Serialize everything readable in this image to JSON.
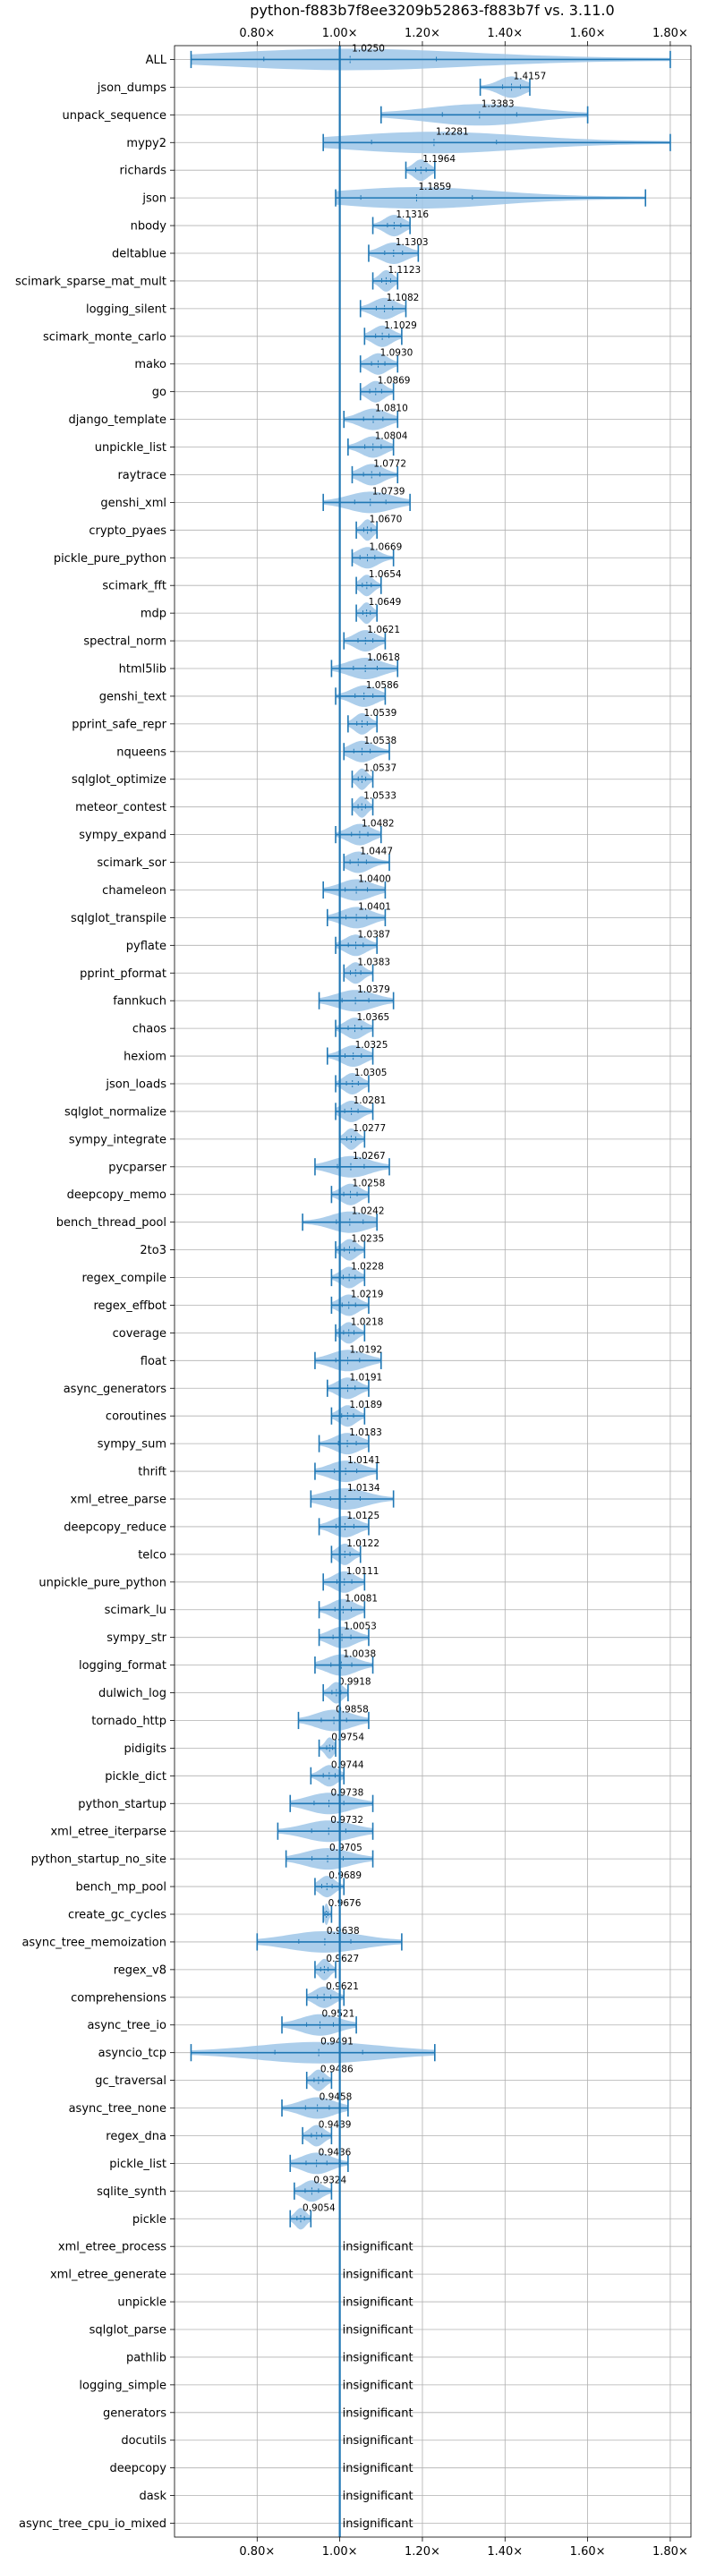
{
  "chart_data": {
    "type": "violin",
    "title": "python-f883b7f8ee3209b52863-f883b7f vs. 3.11.0",
    "xlim": [
      0.6,
      1.85
    ],
    "x_ticks": [
      0.8,
      1.0,
      1.2,
      1.4,
      1.6,
      1.8
    ],
    "x_tick_labels": [
      "0.80×",
      "1.00×",
      "1.20×",
      "1.40×",
      "1.60×",
      "1.80×"
    ],
    "reference_line": 1.0,
    "grid": true,
    "insignificant_label": "insignificant",
    "colors": {
      "line": "#1f77b4",
      "violin": "#9ec5e8"
    },
    "benchmarks": [
      {
        "name": "ALL",
        "value": 1.025,
        "label": "1.0250",
        "min": 0.64,
        "max": 1.8
      },
      {
        "name": "json_dumps",
        "value": 1.4157,
        "label": "1.4157",
        "min": 1.34,
        "max": 1.46
      },
      {
        "name": "unpack_sequence",
        "value": 1.3383,
        "label": "1.3383",
        "min": 1.1,
        "max": 1.6
      },
      {
        "name": "mypy2",
        "value": 1.2281,
        "label": "1.2281",
        "min": 0.96,
        "max": 1.8
      },
      {
        "name": "richards",
        "value": 1.1964,
        "label": "1.1964",
        "min": 1.16,
        "max": 1.23
      },
      {
        "name": "json",
        "value": 1.1859,
        "label": "1.1859",
        "min": 0.99,
        "max": 1.74
      },
      {
        "name": "nbody",
        "value": 1.1316,
        "label": "1.1316",
        "min": 1.08,
        "max": 1.17
      },
      {
        "name": "deltablue",
        "value": 1.1303,
        "label": "1.1303",
        "min": 1.07,
        "max": 1.19
      },
      {
        "name": "scimark_sparse_mat_mult",
        "value": 1.1123,
        "label": "1.1123",
        "min": 1.08,
        "max": 1.14
      },
      {
        "name": "logging_silent",
        "value": 1.1082,
        "label": "1.1082",
        "min": 1.05,
        "max": 1.16
      },
      {
        "name": "scimark_monte_carlo",
        "value": 1.1029,
        "label": "1.1029",
        "min": 1.06,
        "max": 1.15
      },
      {
        "name": "mako",
        "value": 1.093,
        "label": "1.0930",
        "min": 1.05,
        "max": 1.14
      },
      {
        "name": "go",
        "value": 1.0869,
        "label": "1.0869",
        "min": 1.05,
        "max": 1.13
      },
      {
        "name": "django_template",
        "value": 1.081,
        "label": "1.0810",
        "min": 1.01,
        "max": 1.14
      },
      {
        "name": "unpickle_list",
        "value": 1.0804,
        "label": "1.0804",
        "min": 1.02,
        "max": 1.13
      },
      {
        "name": "raytrace",
        "value": 1.0772,
        "label": "1.0772",
        "min": 1.03,
        "max": 1.14
      },
      {
        "name": "genshi_xml",
        "value": 1.0739,
        "label": "1.0739",
        "min": 0.96,
        "max": 1.17
      },
      {
        "name": "crypto_pyaes",
        "value": 1.067,
        "label": "1.0670",
        "min": 1.04,
        "max": 1.09
      },
      {
        "name": "pickle_pure_python",
        "value": 1.0669,
        "label": "1.0669",
        "min": 1.03,
        "max": 1.13
      },
      {
        "name": "scimark_fft",
        "value": 1.0654,
        "label": "1.0654",
        "min": 1.04,
        "max": 1.1
      },
      {
        "name": "mdp",
        "value": 1.0649,
        "label": "1.0649",
        "min": 1.04,
        "max": 1.09
      },
      {
        "name": "spectral_norm",
        "value": 1.0621,
        "label": "1.0621",
        "min": 1.01,
        "max": 1.11
      },
      {
        "name": "html5lib",
        "value": 1.0618,
        "label": "1.0618",
        "min": 0.98,
        "max": 1.14
      },
      {
        "name": "genshi_text",
        "value": 1.0586,
        "label": "1.0586",
        "min": 0.99,
        "max": 1.11
      },
      {
        "name": "pprint_safe_repr",
        "value": 1.0539,
        "label": "1.0539",
        "min": 1.02,
        "max": 1.09
      },
      {
        "name": "nqueens",
        "value": 1.0538,
        "label": "1.0538",
        "min": 1.01,
        "max": 1.12
      },
      {
        "name": "sqlglot_optimize",
        "value": 1.0537,
        "label": "1.0537",
        "min": 1.03,
        "max": 1.08
      },
      {
        "name": "meteor_contest",
        "value": 1.0533,
        "label": "1.0533",
        "min": 1.03,
        "max": 1.08
      },
      {
        "name": "sympy_expand",
        "value": 1.0482,
        "label": "1.0482",
        "min": 0.99,
        "max": 1.1
      },
      {
        "name": "scimark_sor",
        "value": 1.0447,
        "label": "1.0447",
        "min": 1.01,
        "max": 1.12
      },
      {
        "name": "chameleon",
        "value": 1.04,
        "label": "1.0400",
        "min": 0.96,
        "max": 1.11
      },
      {
        "name": "sqlglot_transpile",
        "value": 1.0401,
        "label": "1.0401",
        "min": 0.97,
        "max": 1.11
      },
      {
        "name": "pyflate",
        "value": 1.0387,
        "label": "1.0387",
        "min": 0.99,
        "max": 1.09
      },
      {
        "name": "pprint_pformat",
        "value": 1.0383,
        "label": "1.0383",
        "min": 1.01,
        "max": 1.08
      },
      {
        "name": "fannkuch",
        "value": 1.0379,
        "label": "1.0379",
        "min": 0.95,
        "max": 1.13
      },
      {
        "name": "chaos",
        "value": 1.0365,
        "label": "1.0365",
        "min": 0.99,
        "max": 1.08
      },
      {
        "name": "hexiom",
        "value": 1.0325,
        "label": "1.0325",
        "min": 0.97,
        "max": 1.08
      },
      {
        "name": "json_loads",
        "value": 1.0305,
        "label": "1.0305",
        "min": 0.99,
        "max": 1.07
      },
      {
        "name": "sqlglot_normalize",
        "value": 1.0281,
        "label": "1.0281",
        "min": 0.99,
        "max": 1.08
      },
      {
        "name": "sympy_integrate",
        "value": 1.0277,
        "label": "1.0277",
        "min": 1.0,
        "max": 1.06
      },
      {
        "name": "pycparser",
        "value": 1.0267,
        "label": "1.0267",
        "min": 0.94,
        "max": 1.12
      },
      {
        "name": "deepcopy_memo",
        "value": 1.0258,
        "label": "1.0258",
        "min": 0.98,
        "max": 1.07
      },
      {
        "name": "bench_thread_pool",
        "value": 1.0242,
        "label": "1.0242",
        "min": 0.91,
        "max": 1.09
      },
      {
        "name": "2to3",
        "value": 1.0235,
        "label": "1.0235",
        "min": 0.99,
        "max": 1.06
      },
      {
        "name": "regex_compile",
        "value": 1.0228,
        "label": "1.0228",
        "min": 0.98,
        "max": 1.06
      },
      {
        "name": "regex_effbot",
        "value": 1.0219,
        "label": "1.0219",
        "min": 0.98,
        "max": 1.07
      },
      {
        "name": "coverage",
        "value": 1.0218,
        "label": "1.0218",
        "min": 0.99,
        "max": 1.06
      },
      {
        "name": "float",
        "value": 1.0192,
        "label": "1.0192",
        "min": 0.94,
        "max": 1.1
      },
      {
        "name": "async_generators",
        "value": 1.0191,
        "label": "1.0191",
        "min": 0.97,
        "max": 1.07
      },
      {
        "name": "coroutines",
        "value": 1.0189,
        "label": "1.0189",
        "min": 0.98,
        "max": 1.06
      },
      {
        "name": "sympy_sum",
        "value": 1.0183,
        "label": "1.0183",
        "min": 0.95,
        "max": 1.07
      },
      {
        "name": "thrift",
        "value": 1.0141,
        "label": "1.0141",
        "min": 0.94,
        "max": 1.09
      },
      {
        "name": "xml_etree_parse",
        "value": 1.0134,
        "label": "1.0134",
        "min": 0.93,
        "max": 1.13
      },
      {
        "name": "deepcopy_reduce",
        "value": 1.0125,
        "label": "1.0125",
        "min": 0.95,
        "max": 1.07
      },
      {
        "name": "telco",
        "value": 1.0122,
        "label": "1.0122",
        "min": 0.98,
        "max": 1.05
      },
      {
        "name": "unpickle_pure_python",
        "value": 1.0111,
        "label": "1.0111",
        "min": 0.96,
        "max": 1.06
      },
      {
        "name": "scimark_lu",
        "value": 1.0081,
        "label": "1.0081",
        "min": 0.95,
        "max": 1.06
      },
      {
        "name": "sympy_str",
        "value": 1.0053,
        "label": "1.0053",
        "min": 0.95,
        "max": 1.07
      },
      {
        "name": "logging_format",
        "value": 1.0038,
        "label": "1.0038",
        "min": 0.94,
        "max": 1.08
      },
      {
        "name": "dulwich_log",
        "value": 0.9918,
        "label": "0.9918",
        "min": 0.96,
        "max": 1.02
      },
      {
        "name": "tornado_http",
        "value": 0.9858,
        "label": "0.9858",
        "min": 0.9,
        "max": 1.07
      },
      {
        "name": "pidigits",
        "value": 0.9754,
        "label": "0.9754",
        "min": 0.95,
        "max": 0.99
      },
      {
        "name": "pickle_dict",
        "value": 0.9744,
        "label": "0.9744",
        "min": 0.93,
        "max": 1.01
      },
      {
        "name": "python_startup",
        "value": 0.9738,
        "label": "0.9738",
        "min": 0.88,
        "max": 1.08
      },
      {
        "name": "xml_etree_iterparse",
        "value": 0.9732,
        "label": "0.9732",
        "min": 0.85,
        "max": 1.08
      },
      {
        "name": "python_startup_no_site",
        "value": 0.9705,
        "label": "0.9705",
        "min": 0.87,
        "max": 1.08
      },
      {
        "name": "bench_mp_pool",
        "value": 0.9689,
        "label": "0.9689",
        "min": 0.94,
        "max": 1.01
      },
      {
        "name": "create_gc_cycles",
        "value": 0.9676,
        "label": "0.9676",
        "min": 0.96,
        "max": 0.98
      },
      {
        "name": "async_tree_memoization",
        "value": 0.9638,
        "label": "0.9638",
        "min": 0.8,
        "max": 1.15
      },
      {
        "name": "regex_v8",
        "value": 0.9627,
        "label": "0.9627",
        "min": 0.94,
        "max": 0.99
      },
      {
        "name": "comprehensions",
        "value": 0.9621,
        "label": "0.9621",
        "min": 0.92,
        "max": 1.01
      },
      {
        "name": "async_tree_io",
        "value": 0.9521,
        "label": "0.9521",
        "min": 0.86,
        "max": 1.04
      },
      {
        "name": "asyncio_tcp",
        "value": 0.9491,
        "label": "0.9491",
        "min": 0.64,
        "max": 1.23
      },
      {
        "name": "gc_traversal",
        "value": 0.9486,
        "label": "0.9486",
        "min": 0.92,
        "max": 0.98
      },
      {
        "name": "async_tree_none",
        "value": 0.9458,
        "label": "0.9458",
        "min": 0.86,
        "max": 1.02
      },
      {
        "name": "regex_dna",
        "value": 0.9439,
        "label": "0.9439",
        "min": 0.91,
        "max": 0.98
      },
      {
        "name": "pickle_list",
        "value": 0.9436,
        "label": "0.9436",
        "min": 0.88,
        "max": 1.02
      },
      {
        "name": "sqlite_synth",
        "value": 0.9324,
        "label": "0.9324",
        "min": 0.89,
        "max": 0.98
      },
      {
        "name": "pickle",
        "value": 0.9054,
        "label": "0.9054",
        "min": 0.88,
        "max": 0.93
      },
      {
        "name": "xml_etree_process",
        "value": null,
        "label": "insignificant"
      },
      {
        "name": "xml_etree_generate",
        "value": null,
        "label": "insignificant"
      },
      {
        "name": "unpickle",
        "value": null,
        "label": "insignificant"
      },
      {
        "name": "sqlglot_parse",
        "value": null,
        "label": "insignificant"
      },
      {
        "name": "pathlib",
        "value": null,
        "label": "insignificant"
      },
      {
        "name": "logging_simple",
        "value": null,
        "label": "insignificant"
      },
      {
        "name": "generators",
        "value": null,
        "label": "insignificant"
      },
      {
        "name": "docutils",
        "value": null,
        "label": "insignificant"
      },
      {
        "name": "deepcopy",
        "value": null,
        "label": "insignificant"
      },
      {
        "name": "dask",
        "value": null,
        "label": "insignificant"
      },
      {
        "name": "async_tree_cpu_io_mixed",
        "value": null,
        "label": "insignificant"
      }
    ]
  }
}
